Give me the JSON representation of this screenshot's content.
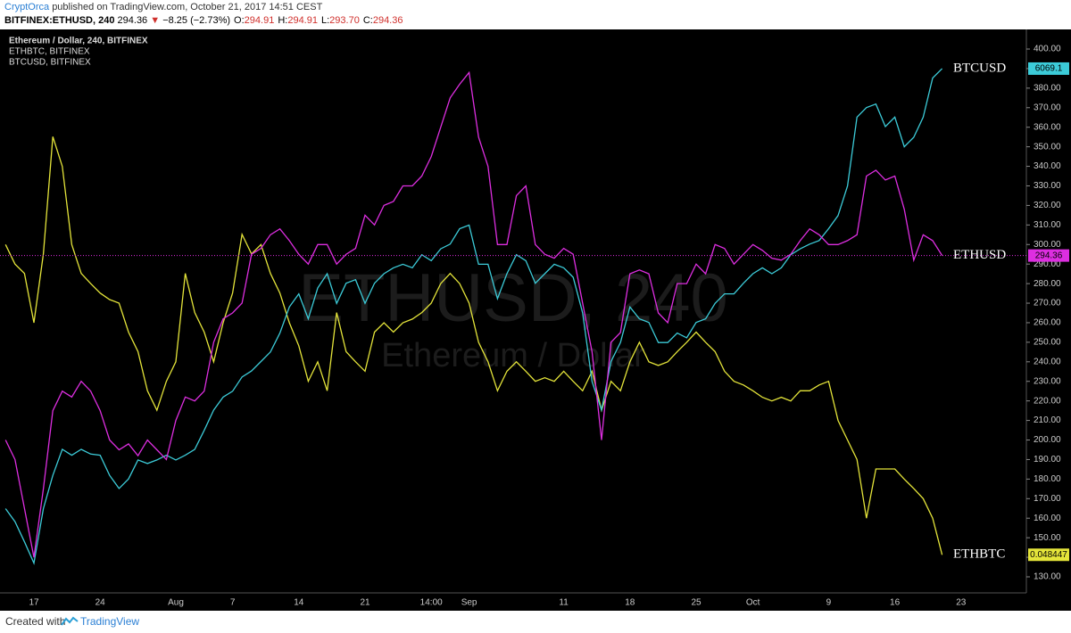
{
  "header": {
    "author": "CryptOrca",
    "published": "published on TradingView.com, October 21, 2017 14:51 CEST",
    "symbol": "BITFINEX:ETHUSD, 240",
    "last": "294.36",
    "arrow": "▼",
    "change": "−8.25 (−2.73%)",
    "ohlc": [
      {
        "k": "O:",
        "v": "294.91"
      },
      {
        "k": "H:",
        "v": "294.91"
      },
      {
        "k": "L:",
        "v": "293.70"
      },
      {
        "k": "C:",
        "v": "294.36"
      }
    ]
  },
  "chart_data": {
    "type": "line",
    "watermark": {
      "symbol": "ETHUSD, 240",
      "description": "Ethereum / Dollar"
    },
    "categories": [
      null,
      null,
      null,
      "17",
      null,
      null,
      null,
      null,
      null,
      null,
      "24",
      null,
      null,
      null,
      null,
      null,
      null,
      null,
      "Aug",
      null,
      null,
      null,
      null,
      null,
      "7",
      null,
      null,
      null,
      null,
      null,
      null,
      "14",
      null,
      null,
      null,
      null,
      null,
      null,
      "21",
      null,
      null,
      null,
      null,
      null,
      null,
      "14:00",
      null,
      null,
      null,
      "Sep",
      null,
      null,
      null,
      null,
      null,
      null,
      null,
      null,
      null,
      "11",
      null,
      null,
      null,
      null,
      null,
      null,
      "18",
      null,
      null,
      null,
      null,
      null,
      null,
      "25",
      null,
      null,
      null,
      null,
      null,
      "Oct",
      null,
      null,
      null,
      null,
      null,
      null,
      null,
      "9",
      null,
      null,
      null,
      null,
      null,
      null,
      "16",
      null,
      null,
      null,
      null,
      null,
      null,
      "23"
    ],
    "ylim": [
      130,
      400
    ],
    "yticks": [
      {
        "value": 130,
        "label": "130.00"
      },
      {
        "value": 140,
        "label": "140.00"
      },
      {
        "value": 150,
        "label": "150.00"
      },
      {
        "value": 160,
        "label": "160.00"
      },
      {
        "value": 170,
        "label": "170.00"
      },
      {
        "value": 180,
        "label": "180.00"
      },
      {
        "value": 190,
        "label": "190.00"
      },
      {
        "value": 200,
        "label": "200.00"
      },
      {
        "value": 210,
        "label": "210.00"
      },
      {
        "value": 220,
        "label": "220.00"
      },
      {
        "value": 230,
        "label": "230.00"
      },
      {
        "value": 240,
        "label": "240.00"
      },
      {
        "value": 250,
        "label": "250.00"
      },
      {
        "value": 260,
        "label": "260.00"
      },
      {
        "value": 270,
        "label": "270.00"
      },
      {
        "value": 280,
        "label": "280.00"
      },
      {
        "value": 290,
        "label": "290.00"
      },
      {
        "value": 300,
        "label": "300.00"
      },
      {
        "value": 310,
        "label": "310.00"
      },
      {
        "value": 320,
        "label": "320.00"
      },
      {
        "value": 330,
        "label": "330.00"
      },
      {
        "value": 340,
        "label": "340.00"
      },
      {
        "value": 350,
        "label": "350.00"
      },
      {
        "value": 360,
        "label": "360.00"
      },
      {
        "value": 370,
        "label": "370.00"
      },
      {
        "value": 380,
        "label": "380.00"
      },
      {
        "value": 390,
        "label": "390.00"
      },
      {
        "value": 400,
        "label": "400.00"
      }
    ],
    "series": [
      {
        "name": "Ethereum / Dollar, 240, BITFINEX",
        "label": "ETHUSD",
        "color": "#dd2ee0",
        "price_line": true,
        "values": [
          200,
          190,
          165,
          140,
          175,
          215,
          225,
          222,
          230,
          225,
          215,
          200,
          195,
          198,
          192,
          200,
          195,
          190,
          210,
          222,
          220,
          225,
          250,
          262,
          265,
          270,
          295,
          298,
          305,
          308,
          302,
          295,
          290,
          300,
          300,
          290,
          295,
          298,
          315,
          310,
          320,
          322,
          330,
          330,
          335,
          345,
          360,
          375,
          382,
          388,
          355,
          340,
          300,
          300,
          325,
          330,
          300,
          295,
          293,
          298,
          295,
          270,
          245,
          200,
          250,
          255,
          285,
          287,
          285,
          265,
          260,
          280,
          280,
          290,
          285,
          300,
          298,
          290,
          295,
          300,
          297,
          293,
          292,
          295,
          302,
          308,
          305,
          300,
          300,
          302,
          305,
          335,
          338,
          333,
          335,
          318,
          292,
          305,
          302,
          294.36,
          null,
          null
        ]
      },
      {
        "name": "ETHBTC, BITFINEX",
        "label": "ETHBTC",
        "color": "#e4e43a",
        "ylim": [
          0.0454,
          0.1183
        ],
        "values": [
          0.0913,
          0.0886,
          0.0873,
          0.0805,
          0.09,
          0.1062,
          0.1021,
          0.0913,
          0.0873,
          0.0859,
          0.0846,
          0.0837,
          0.0832,
          0.0792,
          0.0765,
          0.0711,
          0.0684,
          0.0724,
          0.0751,
          0.0873,
          0.0819,
          0.0792,
          0.0751,
          0.0805,
          0.0846,
          0.0927,
          0.09,
          0.0913,
          0.0873,
          0.0846,
          0.0805,
          0.0773,
          0.0724,
          0.0751,
          0.0711,
          0.0819,
          0.0765,
          0.0751,
          0.0738,
          0.0792,
          0.0805,
          0.0792,
          0.0805,
          0.081,
          0.0819,
          0.0832,
          0.0859,
          0.0873,
          0.0859,
          0.0832,
          0.0778,
          0.0751,
          0.0711,
          0.0738,
          0.0751,
          0.0738,
          0.0724,
          0.0729,
          0.0724,
          0.0738,
          0.0724,
          0.0711,
          0.0738,
          0.0684,
          0.0724,
          0.0711,
          0.0751,
          0.0778,
          0.0751,
          0.0746,
          0.0751,
          0.0765,
          0.0778,
          0.0792,
          0.0778,
          0.0765,
          0.0738,
          0.0724,
          0.0719,
          0.0711,
          0.0702,
          0.0697,
          0.0702,
          0.0697,
          0.0711,
          0.0711,
          0.0719,
          0.0724,
          0.067,
          0.0643,
          0.0616,
          0.0535,
          0.0603,
          0.0603,
          0.0603,
          0.0589,
          0.0576,
          0.0562,
          0.0535,
          0.048447,
          null,
          null
        ]
      },
      {
        "name": "BTCUSD, BITFINEX",
        "label": "BTCUSD",
        "color": "#3ccbd8",
        "ylim": [
          1785,
          6234
        ],
        "values": [
          2360,
          2250,
          2080,
          1900,
          2360,
          2640,
          2860,
          2810,
          2860,
          2820,
          2810,
          2640,
          2530,
          2610,
          2770,
          2740,
          2770,
          2810,
          2770,
          2810,
          2860,
          3020,
          3190,
          3300,
          3350,
          3470,
          3520,
          3600,
          3680,
          3840,
          4060,
          4170,
          3960,
          4220,
          4340,
          4090,
          4260,
          4290,
          4090,
          4260,
          4340,
          4390,
          4420,
          4390,
          4500,
          4450,
          4550,
          4590,
          4720,
          4750,
          4420,
          4420,
          4130,
          4340,
          4500,
          4450,
          4260,
          4340,
          4420,
          4390,
          4310,
          4010,
          3430,
          3190,
          3600,
          3760,
          4060,
          3960,
          3930,
          3760,
          3760,
          3840,
          3800,
          3930,
          3960,
          4090,
          4170,
          4170,
          4260,
          4340,
          4390,
          4340,
          4390,
          4500,
          4550,
          4590,
          4620,
          4720,
          4830,
          5080,
          5660,
          5740,
          5770,
          5580,
          5660,
          5410,
          5490,
          5660,
          5990,
          6069.1,
          null,
          null
        ]
      }
    ]
  },
  "footer": {
    "created": "Created with",
    "brand": "TradingView"
  }
}
